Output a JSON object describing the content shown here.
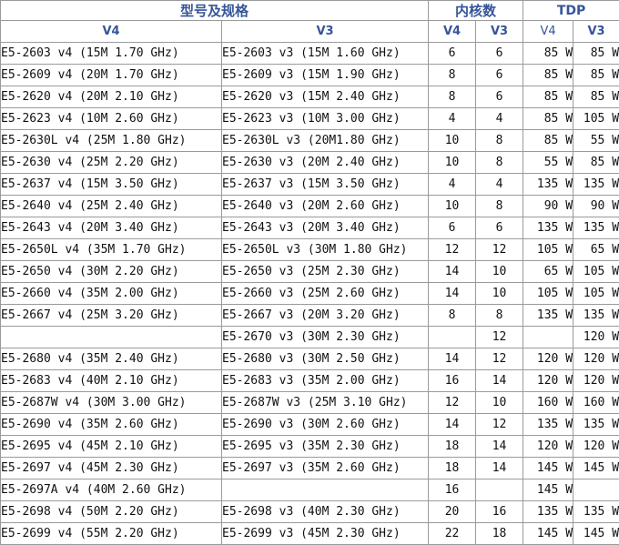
{
  "header": {
    "model_spec": "型号及规格",
    "cores": "内核数",
    "tdp": "TDP",
    "v4": "V4",
    "v3": "V3",
    "tdp_v4": "V4",
    "tdp_v3": "V3"
  },
  "rows": [
    {
      "v4": "E5-2603 v4 (15M 1.70 GHz)",
      "v3": "E5-2603 v3 (15M 1.60 GHz)",
      "c4": "6",
      "c3": "6",
      "t4": "85 W",
      "t3": "85 W"
    },
    {
      "v4": "E5-2609 v4 (20M 1.70 GHz)",
      "v3": "E5-2609 v3 (15M 1.90 GHz)",
      "c4": "8",
      "c3": "6",
      "t4": "85 W",
      "t3": "85 W"
    },
    {
      "v4": "E5-2620 v4 (20M 2.10 GHz)",
      "v3": "E5-2620 v3 (15M 2.40 GHz)",
      "c4": "8",
      "c3": "6",
      "t4": "85 W",
      "t3": "85 W"
    },
    {
      "v4": "E5-2623 v4 (10M 2.60 GHz)",
      "v3": "E5-2623 v3 (10M 3.00 GHz)",
      "c4": "4",
      "c3": "4",
      "t4": "85 W",
      "t3": "105 W"
    },
    {
      "v4": "E5-2630L v4 (25M 1.80 GHz)",
      "v3": "E5-2630L v3 (20M1.80 GHz)",
      "c4": "10",
      "c3": "8",
      "t4": "85 W",
      "t3": "55 W"
    },
    {
      "v4": "E5-2630 v4 (25M 2.20 GHz)",
      "v3": "E5-2630 v3 (20M 2.40 GHz)",
      "c4": "10",
      "c3": "8",
      "t4": "55 W",
      "t3": "85 W"
    },
    {
      "v4": "E5-2637 v4 (15M 3.50 GHz)",
      "v3": "E5-2637 v3 (15M 3.50 GHz)",
      "c4": "4",
      "c3": "4",
      "t4": "135 W",
      "t3": "135 W"
    },
    {
      "v4": "E5-2640 v4 (25M 2.40 GHz)",
      "v3": "E5-2640 v3 (20M 2.60 GHz)",
      "c4": "10",
      "c3": "8",
      "t4": "90 W",
      "t3": "90 W"
    },
    {
      "v4": "E5-2643 v4 (20M 3.40 GHz)",
      "v3": "E5-2643 v3 (20M 3.40 GHz)",
      "c4": "6",
      "c3": "6",
      "t4": "135 W",
      "t3": "135 W"
    },
    {
      "v4": "E5-2650L v4 (35M 1.70 GHz)",
      "v3": "E5-2650L v3 (30M 1.80 GHz)",
      "c4": "12",
      "c3": "12",
      "t4": "105 W",
      "t3": "65 W"
    },
    {
      "v4": "E5-2650 v4 (30M 2.20 GHz)",
      "v3": "E5-2650 v3 (25M 2.30 GHz)",
      "c4": "14",
      "c3": "10",
      "t4": "65 W",
      "t3": "105 W"
    },
    {
      "v4": "E5-2660 v4 (35M 2.00 GHz)",
      "v3": "E5-2660 v3 (25M 2.60 GHz)",
      "c4": "14",
      "c3": "10",
      "t4": "105 W",
      "t3": "105 W"
    },
    {
      "v4": "E5-2667 v4 (25M 3.20 GHz)",
      "v3": "E5-2667 v3 (20M 3.20 GHz)",
      "c4": "8",
      "c3": "8",
      "t4": "135 W",
      "t3": "135 W"
    },
    {
      "v4": "",
      "v3": "E5-2670 v3 (30M 2.30 GHz)",
      "c4": "",
      "c3": "12",
      "t4": "",
      "t3": "120 W"
    },
    {
      "v4": "E5-2680 v4 (35M 2.40 GHz)",
      "v3": "E5-2680 v3 (30M 2.50 GHz)",
      "c4": "14",
      "c3": "12",
      "t4": "120 W",
      "t3": "120 W"
    },
    {
      "v4": "E5-2683 v4 (40M 2.10 GHz)",
      "v3": "E5-2683 v3 (35M 2.00 GHz)",
      "c4": "16",
      "c3": "14",
      "t4": "120 W",
      "t3": "120 W"
    },
    {
      "v4": "E5-2687W v4 (30M 3.00 GHz)",
      "v3": "E5-2687W v3 (25M 3.10 GHz)",
      "c4": "12",
      "c3": "10",
      "t4": "160 W",
      "t3": "160 W"
    },
    {
      "v4": "E5-2690 v4 (35M 2.60 GHz)",
      "v3": "E5-2690 v3 (30M 2.60 GHz)",
      "c4": "14",
      "c3": "12",
      "t4": "135 W",
      "t3": "135 W"
    },
    {
      "v4": "E5-2695 v4 (45M 2.10 GHz)",
      "v3": "E5-2695 v3 (35M 2.30 GHz)",
      "c4": "18",
      "c3": "14",
      "t4": "120 W",
      "t3": "120 W"
    },
    {
      "v4": "E5-2697 v4 (45M 2.30 GHz)",
      "v3": "E5-2697 v3 (35M 2.60 GHz)",
      "c4": "18",
      "c3": "14",
      "t4": "145 W",
      "t3": "145 W"
    },
    {
      "v4": "E5-2697A v4 (40M 2.60 GHz)",
      "v3": "",
      "c4": "16",
      "c3": "",
      "t4": "145 W",
      "t3": ""
    },
    {
      "v4": "E5-2698 v4 (50M 2.20 GHz)",
      "v3": "E5-2698 v3 (40M 2.30 GHz)",
      "c4": "20",
      "c3": "16",
      "t4": "135 W",
      "t3": "135 W"
    },
    {
      "v4": "E5-2699 v4 (55M 2.20 GHz)",
      "v3": "E5-2699 v3 (45M 2.30 GHz)",
      "c4": "22",
      "c3": "18",
      "t4": "145 W",
      "t3": "145 W"
    }
  ]
}
